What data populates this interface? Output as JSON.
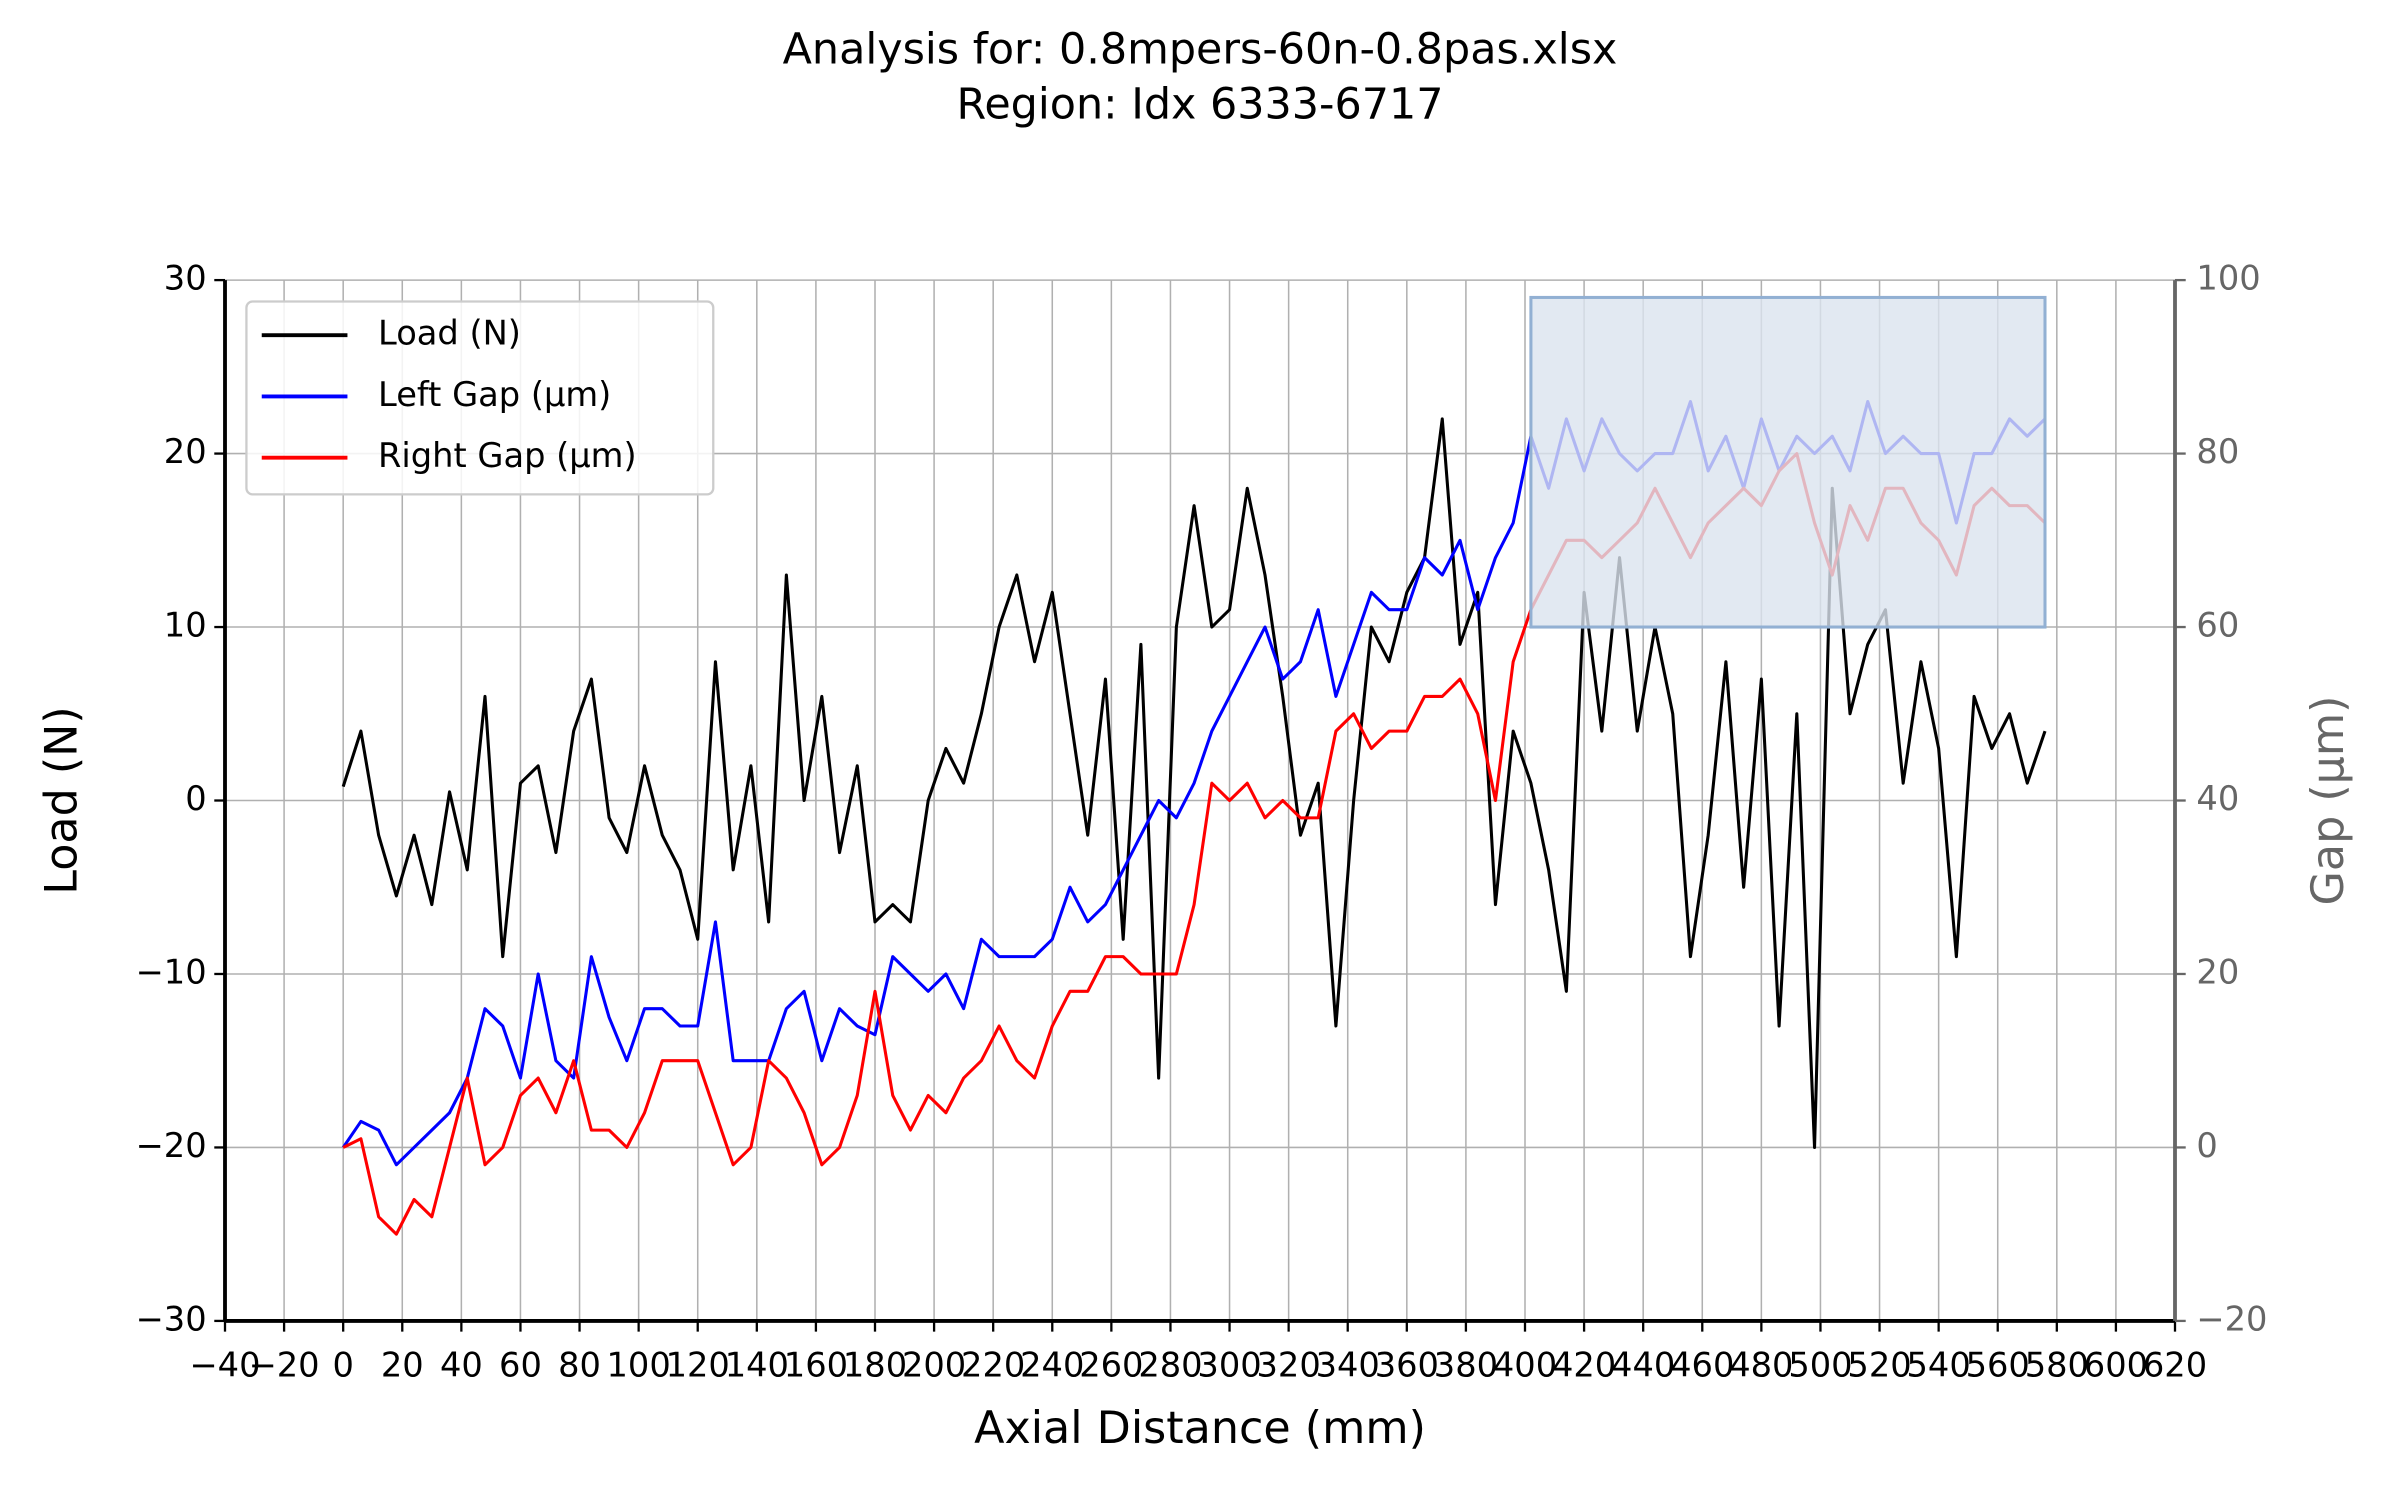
{
  "chart_data": {
    "type": "line",
    "title": "Analysis for: 0.8mpers-60n-0.8pas.xlsx",
    "subtitle": "Region: Idx 6333-6717",
    "x_label": "Axial Distance (mm)",
    "y_label": "Load (N)",
    "y2_label": "Gap (µm)",
    "x": [
      0,
      6,
      12,
      18,
      24,
      30,
      36,
      42,
      48,
      54,
      60,
      66,
      72,
      78,
      84,
      90,
      96,
      102,
      108,
      114,
      120,
      126,
      132,
      138,
      144,
      150,
      156,
      162,
      168,
      174,
      180,
      186,
      192,
      198,
      204,
      210,
      216,
      222,
      228,
      234,
      240,
      246,
      252,
      258,
      264,
      270,
      276,
      282,
      288,
      294,
      300,
      306,
      312,
      318,
      324,
      330,
      336,
      342,
      348,
      354,
      360,
      366,
      372,
      378,
      384,
      390,
      396,
      402,
      408,
      414,
      420,
      426,
      432,
      438,
      444,
      450,
      456,
      462,
      468,
      474,
      480,
      486,
      492,
      498,
      504,
      510,
      516,
      522,
      528,
      534,
      540,
      546,
      552,
      558,
      564,
      570,
      576
    ],
    "series": [
      {
        "name": "Load (N)",
        "color": "#000000",
        "values": [
          0.8,
          4,
          -2,
          -5.5,
          -2,
          -6,
          0.5,
          -4,
          6,
          -9,
          1,
          2,
          -3,
          4,
          7,
          -1,
          -3,
          2,
          -2,
          -4,
          -8,
          8,
          -4,
          2,
          -7,
          13,
          0,
          6,
          -3,
          2,
          -7,
          -6,
          -7,
          0,
          3,
          1,
          5,
          10,
          13,
          8,
          12,
          5,
          -2,
          7,
          -8,
          9,
          -16,
          10,
          17,
          10,
          11,
          18,
          13,
          6,
          -2,
          1,
          -13,
          0,
          10,
          8,
          12,
          14,
          22,
          9,
          12,
          -6,
          4,
          1,
          -4,
          -11,
          12,
          4,
          14,
          4,
          10,
          5,
          -9,
          -2,
          8,
          -5,
          7,
          -13,
          5,
          -20,
          18,
          5,
          9,
          11,
          1,
          8,
          3,
          -9,
          6,
          3,
          5,
          1,
          4
        ]
      },
      {
        "name": "Left Gap (µm)",
        "color": "#0000ff",
        "axis": "y2",
        "values": [
          0,
          3,
          2,
          -2,
          0,
          2,
          4,
          8,
          16,
          14,
          8,
          20,
          10,
          8,
          22,
          15,
          10,
          16,
          16,
          14,
          14,
          26,
          10,
          10,
          10,
          16,
          18,
          10,
          16,
          14,
          13,
          22,
          20,
          18,
          20,
          16,
          24,
          22,
          22,
          22,
          24,
          30,
          26,
          28,
          32,
          36,
          40,
          38,
          42,
          48,
          52,
          56,
          60,
          54,
          56,
          62,
          52,
          58,
          64,
          62,
          62,
          68,
          66,
          70,
          62,
          68,
          72,
          82,
          76,
          84,
          78,
          84,
          80,
          78,
          80,
          80,
          86,
          78,
          82,
          76,
          84,
          78,
          82,
          80,
          82,
          78,
          86,
          80,
          82,
          80,
          80,
          72,
          80,
          80,
          84,
          82,
          84
        ]
      },
      {
        "name": "Right Gap (µm)",
        "color": "#ff0000",
        "axis": "y2",
        "values": [
          0,
          1,
          -8,
          -10,
          -6,
          -8,
          0,
          8,
          -2,
          0,
          6,
          8,
          4,
          10,
          2,
          2,
          0,
          4,
          10,
          10,
          10,
          4,
          -2,
          0,
          10,
          8,
          4,
          -2,
          0,
          6,
          18,
          6,
          2,
          6,
          4,
          8,
          10,
          14,
          10,
          8,
          14,
          18,
          18,
          22,
          22,
          20,
          20,
          20,
          28,
          42,
          40,
          42,
          38,
          40,
          38,
          38,
          48,
          50,
          46,
          48,
          48,
          52,
          52,
          54,
          50,
          40,
          56,
          62,
          66,
          70,
          70,
          68,
          70,
          72,
          76,
          72,
          68,
          72,
          74,
          76,
          74,
          78,
          80,
          72,
          66,
          74,
          70,
          76,
          76,
          72,
          70,
          66,
          74,
          76,
          74,
          74,
          72
        ]
      }
    ],
    "xlim": [
      -40,
      620
    ],
    "xticks": [
      {
        "value": -40,
        "label": "−40"
      },
      {
        "value": -20,
        "label": "−20"
      },
      0,
      20,
      40,
      60,
      80,
      100,
      120,
      140,
      160,
      180,
      200,
      220,
      240,
      260,
      280,
      300,
      320,
      340,
      360,
      380,
      400,
      420,
      440,
      460,
      480,
      500,
      520,
      540,
      560,
      580,
      600,
      620
    ],
    "ylim": [
      -30,
      30
    ],
    "yticks": [
      {
        "value": -30,
        "label": "−30"
      },
      {
        "value": -20,
        "label": "−20"
      },
      {
        "value": -10,
        "label": "−10"
      },
      0,
      10,
      20,
      30
    ],
    "y2lim": [
      -20,
      100
    ],
    "y2ticks": [
      {
        "value": -20,
        "label": "−20"
      },
      0,
      20,
      40,
      60,
      80,
      100
    ],
    "highlight": {
      "x": [
        402,
        576
      ],
      "y": [
        60,
        98
      ],
      "color": "#dbe3ef",
      "edge": "#92b0d3"
    },
    "grid": true,
    "legend": "upper left"
  }
}
